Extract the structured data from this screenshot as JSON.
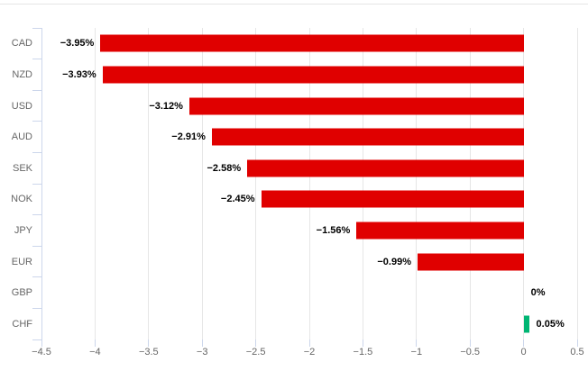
{
  "chart_data": {
    "type": "bar",
    "orientation": "horizontal",
    "title": "",
    "xlabel": "",
    "ylabel": "",
    "categories": [
      "CAD",
      "NZD",
      "USD",
      "AUD",
      "SEK",
      "NOK",
      "JPY",
      "EUR",
      "GBP",
      "CHF"
    ],
    "values": [
      -3.95,
      -3.93,
      -3.12,
      -2.91,
      -2.58,
      -2.45,
      -1.56,
      -0.99,
      0,
      0.05
    ],
    "data_labels": [
      "−3.95%",
      "−3.93%",
      "−3.12%",
      "−2.91%",
      "−2.58%",
      "−2.45%",
      "−1.56%",
      "−0.99%",
      "0%",
      "0.05%"
    ],
    "x_ticks": [
      -4.5,
      -4,
      -3.5,
      -3,
      -2.5,
      -2,
      -1.5,
      -1,
      -0.5,
      0,
      0.5
    ],
    "x_tick_labels": [
      "−4.5",
      "−4",
      "−3.5",
      "−3",
      "−2.5",
      "−2",
      "−1.5",
      "−1",
      "−0.5",
      "0",
      "0.5"
    ],
    "xlim": [
      -4.5,
      0.5
    ],
    "grid": true,
    "legend": "none",
    "colors": {
      "negative_bar": "#e00000",
      "positive_bar": "#00b573",
      "gridline": "#e6e6e6",
      "axis_line": "#ccd6eb",
      "tick_label": "#666666",
      "data_label": "#000000",
      "top_border": "#e6e6e6"
    }
  }
}
